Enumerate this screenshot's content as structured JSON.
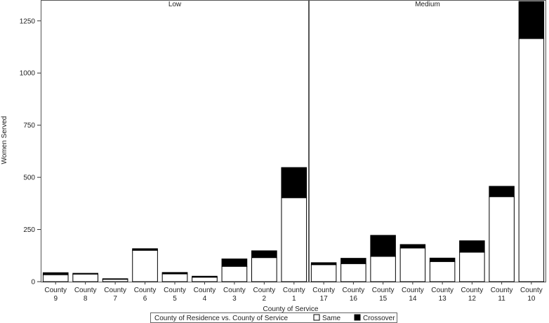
{
  "chart_data": {
    "type": "bar",
    "stacked": true,
    "xlabel": "County of Service",
    "ylabel": "Women Served",
    "ylim": [
      0,
      1350
    ],
    "yticks": [
      0,
      250,
      500,
      750,
      1000,
      1250
    ],
    "grid": false,
    "legend": {
      "title": "County of Residence vs. County of Service",
      "placement": "bottom",
      "entries": [
        {
          "name": "Same",
          "color": "#ffffff"
        },
        {
          "name": "Crossover",
          "color": "#000000"
        }
      ]
    },
    "panels": [
      {
        "label": "Low",
        "categories": [
          {
            "line1": "County",
            "line2": "9"
          },
          {
            "line1": "County",
            "line2": "8"
          },
          {
            "line1": "County",
            "line2": "7"
          },
          {
            "line1": "County",
            "line2": "6"
          },
          {
            "line1": "County",
            "line2": "5"
          },
          {
            "line1": "County",
            "line2": "4"
          },
          {
            "line1": "County",
            "line2": "3"
          },
          {
            "line1": "County",
            "line2": "2"
          },
          {
            "line1": "County",
            "line2": "1"
          }
        ],
        "series": [
          {
            "name": "Same",
            "values": [
              33,
              36,
              11,
              150,
              37,
              21,
              73,
              115,
              402
            ]
          },
          {
            "name": "Crossover",
            "values": [
              10,
              4,
              3,
              8,
              7,
              5,
              36,
              33,
              145
            ]
          }
        ]
      },
      {
        "label": "Medium",
        "categories": [
          {
            "line1": "County",
            "line2": "17"
          },
          {
            "line1": "County",
            "line2": "16"
          },
          {
            "line1": "County",
            "line2": "15"
          },
          {
            "line1": "County",
            "line2": "14"
          },
          {
            "line1": "County",
            "line2": "13"
          },
          {
            "line1": "County",
            "line2": "12"
          },
          {
            "line1": "County",
            "line2": "11"
          },
          {
            "line1": "County",
            "line2": "10"
          }
        ],
        "series": [
          {
            "name": "Same",
            "values": [
              81,
              86,
              121,
              161,
              96,
              141,
              407,
              1165
            ]
          },
          {
            "name": "Crossover",
            "values": [
              10,
              26,
              101,
              17,
              17,
              55,
              50,
              178
            ]
          }
        ]
      }
    ]
  }
}
